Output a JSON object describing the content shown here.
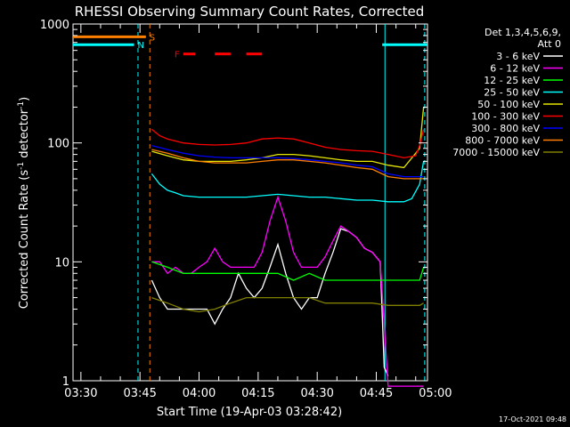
{
  "chart_data": {
    "type": "line",
    "title": "RHESSI Observing Summary Count Rates, Corrected",
    "xlabel": "Start Time (19-Apr-03 03:28:42)",
    "ylabel_main": "Corrected Count Rate (s",
    "ylabel_sup1": "-1",
    "ylabel_mid": " detector",
    "ylabel_sup2": "-1",
    "ylabel_end": ")",
    "y_scale": "log",
    "ylim": [
      1,
      1000
    ],
    "xlim": [
      -2,
      88
    ],
    "x_unit": "minutes since 03:30",
    "y_ticks": [
      {
        "value": 1,
        "label": "1"
      },
      {
        "value": 10,
        "label": "10"
      },
      {
        "value": 100,
        "label": "100"
      },
      {
        "value": 1000,
        "label": "1000"
      }
    ],
    "x_ticks": [
      {
        "value": 0,
        "label": "03:30"
      },
      {
        "value": 15,
        "label": "03:45"
      },
      {
        "value": 30,
        "label": "04:00"
      },
      {
        "value": 45,
        "label": "04:15"
      },
      {
        "value": 60,
        "label": "04:30"
      },
      {
        "value": 75,
        "label": "04:45"
      },
      {
        "value": 90,
        "label": "05:00"
      }
    ],
    "legend": {
      "placement": "right",
      "header1": "Det 1,3,4,5,6,9,",
      "header2": "Att 0",
      "entries": [
        {
          "label": "3 - 6 keV",
          "color": "#ffffff"
        },
        {
          "label": "6 - 12 keV",
          "color": "#ff00ff"
        },
        {
          "label": "12 - 25 keV",
          "color": "#00ff00"
        },
        {
          "label": "25 - 50 keV",
          "color": "#00ffff"
        },
        {
          "label": "50 - 100 keV",
          "color": "#e6e600"
        },
        {
          "label": "100 - 300 keV",
          "color": "#ff0000"
        },
        {
          "label": "300 - 800 keV",
          "color": "#0000ff"
        },
        {
          "label": "800 - 7000 keV",
          "color": "#ff8000"
        },
        {
          "label": "7000 - 15000 keV",
          "color": "#808000"
        }
      ]
    },
    "flags": [
      {
        "label": "S",
        "color": "#ff8000",
        "x_start": -2,
        "x_end": 16.5,
        "level": 780
      },
      {
        "label": "N",
        "color": "#00ffff",
        "x_start": -2,
        "x_end": 13.5,
        "level": 670
      },
      {
        "label": "F",
        "color": "#ff0000",
        "segments": [
          [
            26,
            29
          ],
          [
            34,
            38
          ],
          [
            42,
            46
          ]
        ],
        "level": 560
      },
      {
        "label": "",
        "color": "#00ffff",
        "x_start": 76.5,
        "x_end": 88,
        "level": 670
      }
    ],
    "vlines": [
      {
        "x": 14.5,
        "color": "#00ffff",
        "dashed": true
      },
      {
        "x": 17.5,
        "color": "#ff8000",
        "dashed": true
      },
      {
        "x": 77.2,
        "color": "#00ffff",
        "dashed": false
      },
      {
        "x": 87.3,
        "color": "#00ffff",
        "dashed": true
      }
    ],
    "series": [
      {
        "name": "3 - 6 keV",
        "color": "#ffffff",
        "x": [
          18,
          20,
          22,
          24,
          26,
          28,
          30,
          32,
          34,
          36,
          38,
          40,
          42,
          44,
          46,
          48,
          50,
          52,
          54,
          56,
          58,
          60,
          62,
          64,
          66,
          68,
          70,
          72,
          74,
          76,
          77,
          78
        ],
        "y": [
          7,
          5,
          4,
          4,
          4,
          4,
          4,
          4,
          3,
          4,
          5,
          8,
          6,
          5,
          6,
          9,
          14,
          8,
          5,
          4,
          5,
          5,
          8,
          12,
          19,
          18,
          16,
          13,
          12,
          10,
          1.3,
          1.1
        ]
      },
      {
        "name": "6 - 12 keV",
        "color": "#ff00ff",
        "x": [
          18,
          20,
          22,
          24,
          26,
          28,
          30,
          32,
          34,
          36,
          38,
          40,
          42,
          44,
          46,
          48,
          50,
          52,
          54,
          56,
          58,
          60,
          62,
          64,
          66,
          68,
          70,
          72,
          74,
          76,
          78,
          80,
          82,
          84,
          86,
          87
        ],
        "y": [
          10,
          10,
          8,
          9,
          8,
          8,
          9,
          10,
          13,
          10,
          9,
          9,
          9,
          9,
          12,
          22,
          35,
          22,
          12,
          9,
          9,
          9,
          11,
          15,
          20,
          18,
          16,
          13,
          12,
          10,
          0.9,
          0.9,
          0.9,
          0.9,
          0.9,
          0.9
        ]
      },
      {
        "name": "12 - 25 keV",
        "color": "#00ff00",
        "x": [
          18,
          22,
          26,
          30,
          34,
          38,
          42,
          46,
          50,
          54,
          58,
          62,
          66,
          70,
          74,
          78,
          82,
          86,
          87
        ],
        "y": [
          10,
          9,
          8,
          8,
          8,
          8,
          8,
          8,
          8,
          7,
          8,
          7,
          7,
          7,
          7,
          7,
          7,
          7,
          9
        ]
      },
      {
        "name": "25 - 50 keV",
        "color": "#00ffff",
        "x": [
          18,
          20,
          22,
          24,
          26,
          30,
          34,
          38,
          42,
          46,
          50,
          54,
          58,
          62,
          66,
          70,
          74,
          78,
          82,
          84,
          86,
          87
        ],
        "y": [
          55,
          45,
          40,
          38,
          36,
          35,
          35,
          35,
          35,
          36,
          37,
          36,
          35,
          35,
          34,
          33,
          33,
          32,
          32,
          34,
          45,
          70
        ]
      },
      {
        "name": "50 - 100 keV",
        "color": "#e6e600",
        "x": [
          18,
          22,
          26,
          30,
          34,
          38,
          42,
          46,
          50,
          54,
          58,
          62,
          66,
          70,
          74,
          78,
          82,
          86,
          87
        ],
        "y": [
          85,
          78,
          72,
          70,
          70,
          70,
          72,
          75,
          80,
          80,
          78,
          75,
          72,
          70,
          70,
          65,
          62,
          90,
          200
        ]
      },
      {
        "name": "100 - 300 keV",
        "color": "#ff0000",
        "x": [
          18,
          20,
          22,
          26,
          30,
          34,
          38,
          42,
          46,
          50,
          54,
          58,
          62,
          66,
          70,
          74,
          78,
          82,
          85,
          86,
          87
        ],
        "y": [
          130,
          115,
          108,
          100,
          97,
          96,
          97,
          100,
          108,
          110,
          108,
          100,
          92,
          88,
          86,
          85,
          80,
          75,
          78,
          95,
          130
        ]
      },
      {
        "name": "300 - 800 keV",
        "color": "#0000ff",
        "x": [
          18,
          22,
          26,
          30,
          34,
          38,
          42,
          46,
          50,
          54,
          58,
          62,
          66,
          70,
          74,
          78,
          82,
          86,
          87
        ],
        "y": [
          95,
          88,
          82,
          78,
          76,
          75,
          75,
          75,
          75,
          74,
          72,
          70,
          68,
          65,
          63,
          55,
          52,
          52,
          52
        ]
      },
      {
        "name": "800 - 7000 keV",
        "color": "#ff8000",
        "x": [
          18,
          22,
          26,
          30,
          34,
          38,
          42,
          46,
          50,
          54,
          58,
          62,
          66,
          70,
          74,
          78,
          82,
          86,
          87
        ],
        "y": [
          88,
          82,
          75,
          70,
          68,
          68,
          68,
          70,
          72,
          72,
          70,
          68,
          65,
          62,
          60,
          52,
          50,
          50,
          50
        ]
      },
      {
        "name": "7000 - 15000 keV",
        "color": "#808000",
        "x": [
          18,
          22,
          26,
          30,
          34,
          38,
          42,
          46,
          50,
          54,
          58,
          62,
          66,
          70,
          74,
          78,
          82,
          86,
          87
        ],
        "y": [
          5,
          4.5,
          4,
          3.8,
          4,
          4.5,
          5,
          5,
          5,
          5,
          5,
          4.5,
          4.5,
          4.5,
          4.5,
          4.3,
          4.3,
          4.3,
          4.5
        ]
      }
    ],
    "date_stamp": "17-Oct-2021 09:48"
  }
}
